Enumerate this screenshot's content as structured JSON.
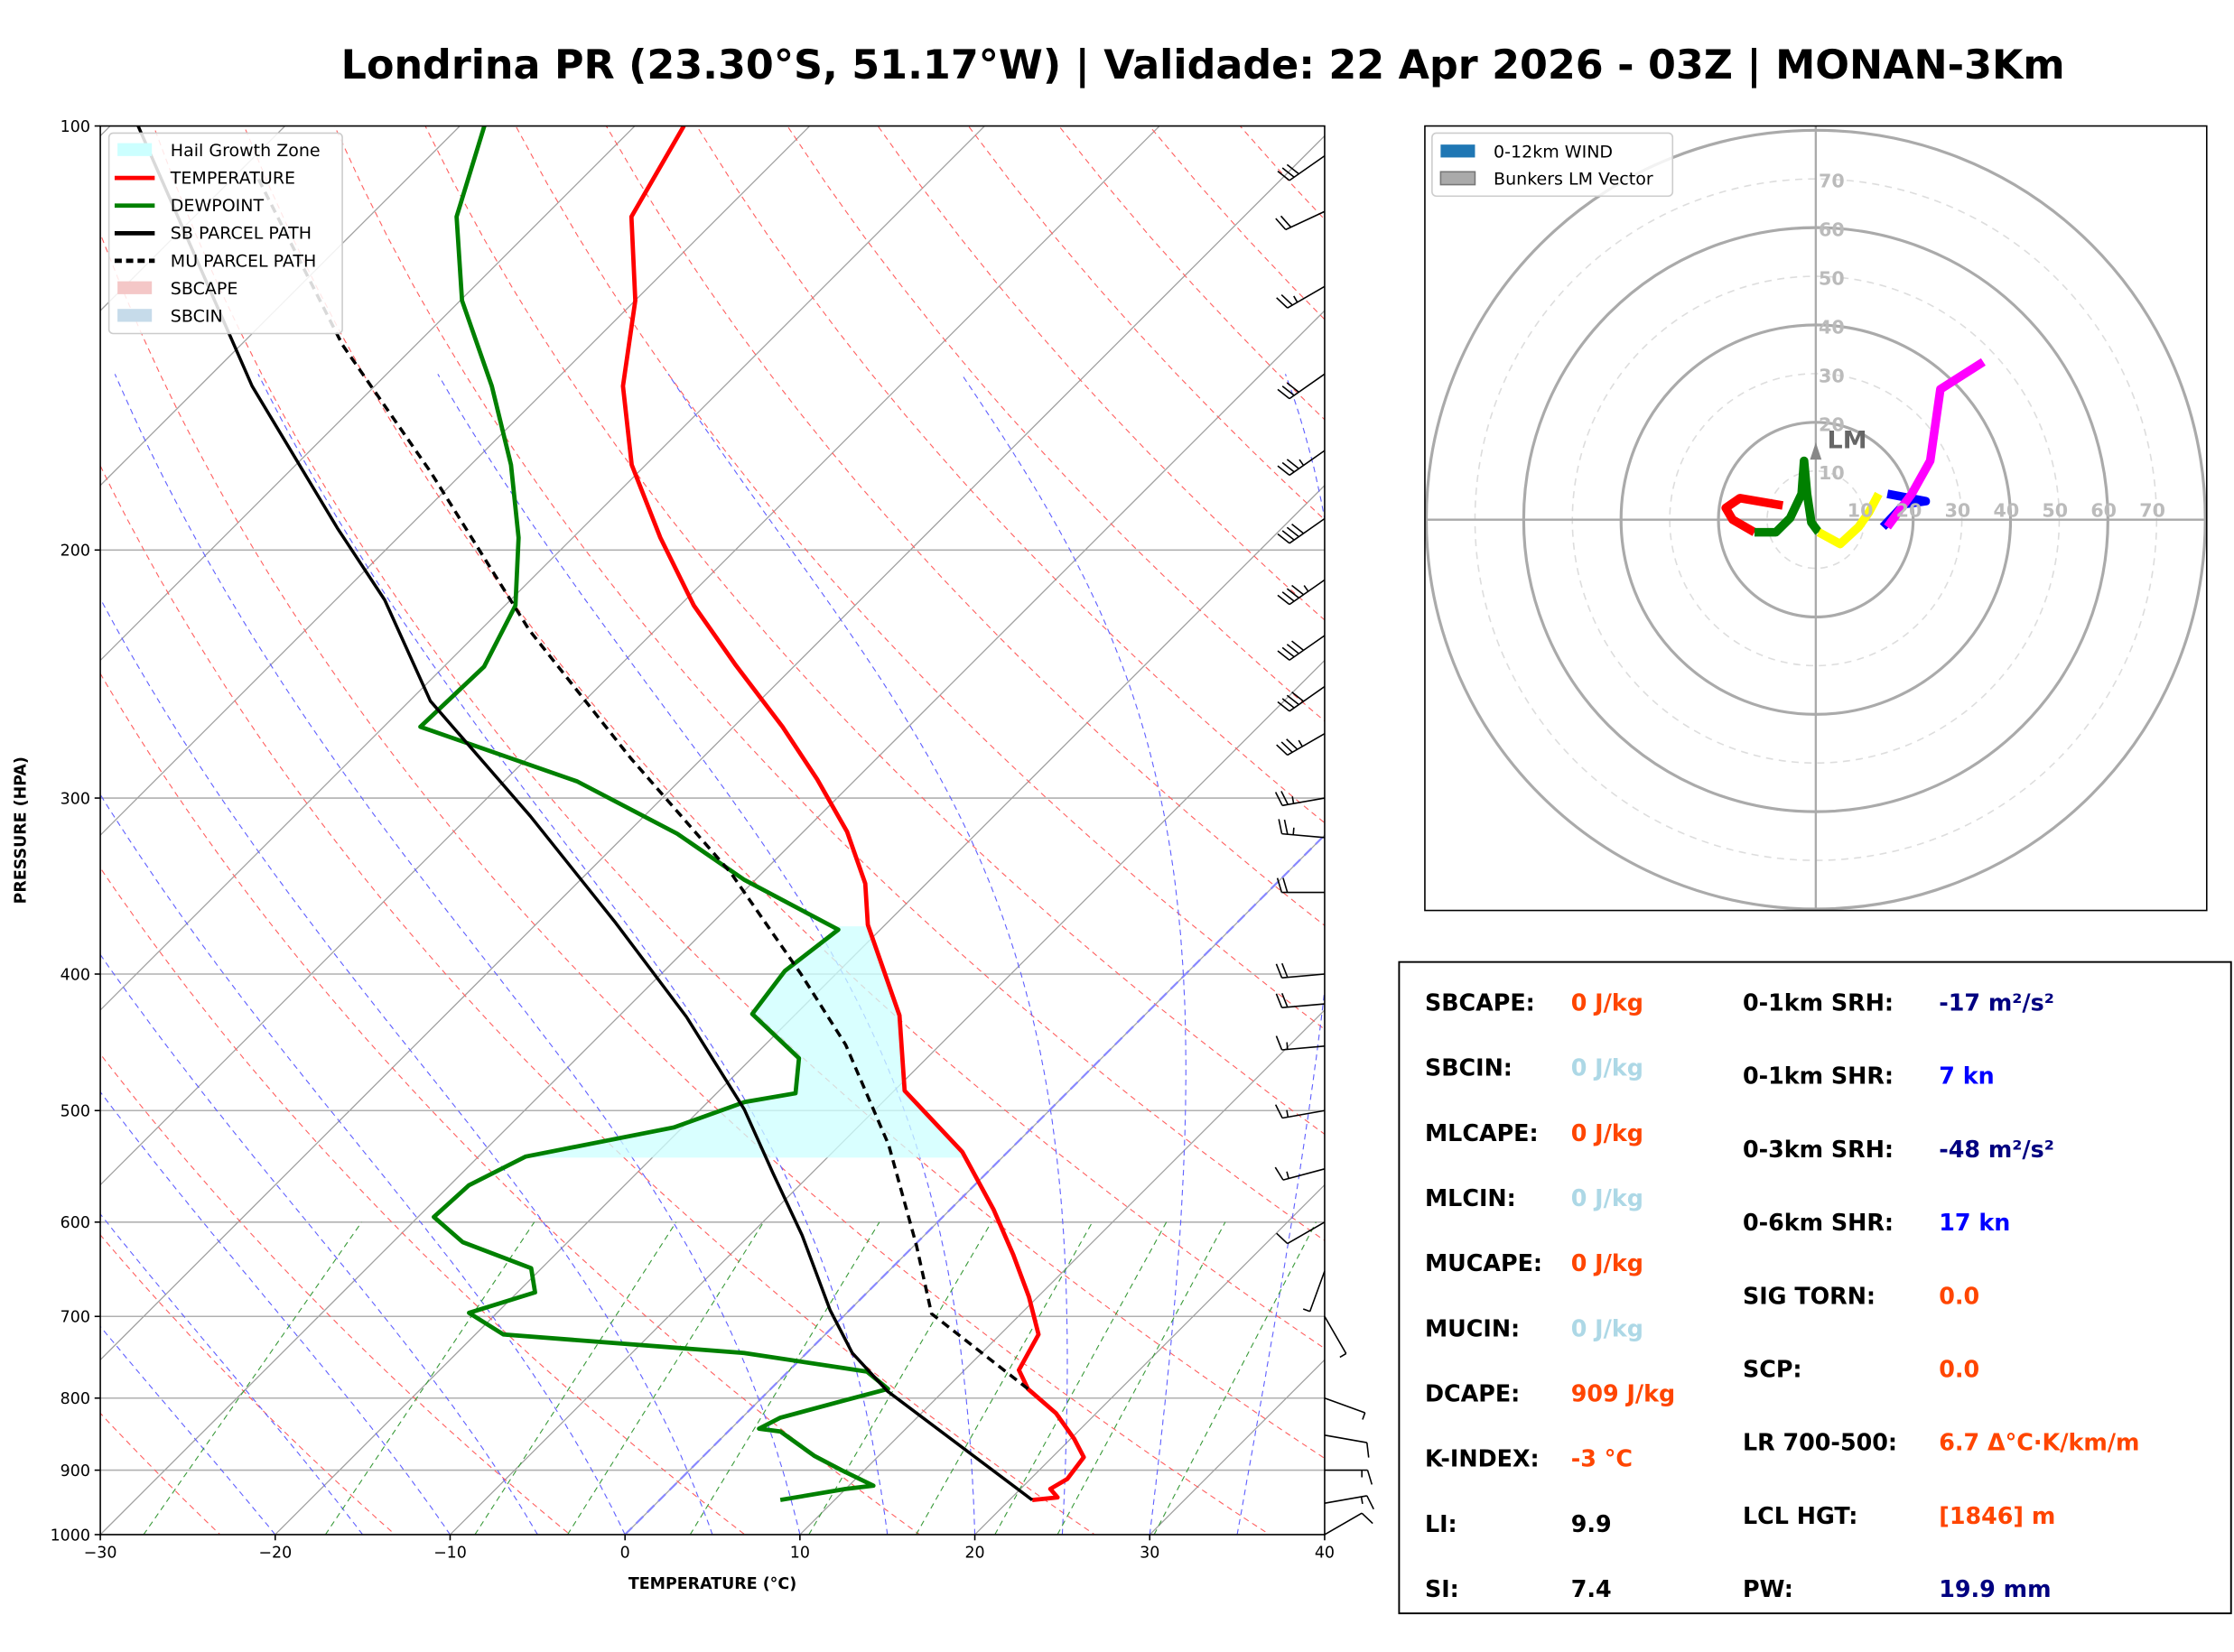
{
  "title": "Londrina PR (23.30°S, 51.17°W) | Validade: 22 Apr 2026 - 03Z | MONAN-3Km",
  "chart_data": [
    {
      "type": "line",
      "kind": "skew-T log-p",
      "xlabel": "TEMPERATURE (°C)",
      "ylabel": "PRESSURE (HPA)",
      "xlim": [
        -30,
        40
      ],
      "ylim": [
        1000,
        100
      ],
      "yscale": "log",
      "xticks": [
        "−30",
        "−20",
        "−10",
        "0",
        "10",
        "20",
        "30",
        "40"
      ],
      "xtick_values": [
        -30,
        -20,
        -10,
        0,
        10,
        20,
        30,
        40
      ],
      "yticks": [
        "100",
        "200",
        "300",
        "400",
        "500",
        "600",
        "700",
        "800",
        "900",
        "1000"
      ],
      "ytick_values": [
        100,
        200,
        300,
        400,
        500,
        600,
        700,
        800,
        900,
        1000
      ],
      "grid": true,
      "legend_position": "top-left",
      "legend": [
        {
          "label": "Hail Growth Zone",
          "color": "#ccffff",
          "style": "patch"
        },
        {
          "label": "TEMPERATURE",
          "color": "#ff0000",
          "style": "line"
        },
        {
          "label": "DEWPOINT",
          "color": "#008000",
          "style": "line"
        },
        {
          "label": "SB PARCEL PATH",
          "color": "#000000",
          "style": "line"
        },
        {
          "label": "MU PARCEL PATH",
          "color": "#000000",
          "style": "dashed"
        },
        {
          "label": "SBCAPE",
          "color": "#f4c7c7",
          "style": "patch"
        },
        {
          "label": "SBCIN",
          "color": "#c6dbea",
          "style": "patch"
        }
      ],
      "series": [
        {
          "name": "TEMPERATURE",
          "color": "#ff0000",
          "p": [
            945,
            941,
            928,
            913,
            881,
            855,
            820,
            788,
            764,
            721,
            678,
            633,
            588,
            535,
            484,
            428,
            369,
            345,
            317,
            291,
            267,
            241,
            219,
            196,
            174,
            153,
            133,
            116,
            100
          ],
          "t": [
            21.3,
            22.6,
            21.7,
            22.1,
            21.8,
            20.2,
            17.7,
            14.7,
            13.1,
            12.2,
            9.5,
            6.2,
            2.5,
            -2.6,
            -9.4,
            -14.0,
            -21.0,
            -23.5,
            -27.5,
            -32.2,
            -37.2,
            -43.5,
            -49.2,
            -55.0,
            -60.8,
            -65.8,
            -70.0,
            -75.0,
            -77.2
          ]
        },
        {
          "name": "DEWPOINT",
          "color": "#008000",
          "p": [
            945,
            928,
            923,
            900,
            879,
            845,
            841,
            826,
            803,
            788,
            766,
            743,
            721,
            696,
            673,
            647,
            620,
            595,
            565,
            539,
            514,
            493,
            486,
            459,
            427,
            398,
            372,
            343,
            318,
            292,
            267,
            242,
            219,
            196,
            174,
            153,
            133,
            116,
            100
          ],
          "t": [
            6.9,
            10.0,
            11.4,
            8.7,
            6.3,
            3.0,
            1.6,
            2.2,
            4.9,
            6.7,
            4.5,
            -3.6,
            -18.4,
            -21.6,
            -19.0,
            -20.6,
            -26.0,
            -29.1,
            -28.9,
            -27.3,
            -20.5,
            -17.9,
            -15.5,
            -17.3,
            -22.5,
            -23.1,
            -22.4,
            -30.6,
            -37.1,
            -45.8,
            -57.9,
            -57.7,
            -59.4,
            -63.1,
            -67.7,
            -73.3,
            -79.9,
            -85.0,
            -88.6
          ]
        },
        {
          "name": "SB PARCEL PATH",
          "color": "#000000",
          "p": [
            945,
            791,
            743,
            693,
            613,
            554,
            499,
            429,
            368,
            309,
            256,
            217,
            193,
            153,
            100
          ],
          "t": [
            21.3,
            6.8,
            2.6,
            -1.1,
            -7.0,
            -12.2,
            -17.5,
            -26.1,
            -35.5,
            -46.5,
            -58.8,
            -67.2,
            -74.0,
            -87.0,
            -108.4
          ]
        },
        {
          "name": "MU PARCEL PATH",
          "color": "#000000",
          "dashed": true,
          "p": [
            788,
            697,
            623,
            529,
            449,
            400,
            339,
            281,
            228,
            176,
            143,
            108
          ],
          "t": [
            14.7,
            4.9,
            0.1,
            -7.2,
            -15.4,
            -22.0,
            -31.8,
            -44.1,
            -57.2,
            -71.9,
            -84.2,
            -99.0
          ]
        }
      ],
      "hail_growth_zone_hpa": [
        540,
        370
      ],
      "wind_barbs": [
        {
          "p": 1000,
          "dir": 60,
          "spd": 10
        },
        {
          "p": 950,
          "dir": 80,
          "spd": 15
        },
        {
          "p": 900,
          "dir": 90,
          "spd": 15
        },
        {
          "p": 850,
          "dir": 100,
          "spd": 12
        },
        {
          "p": 800,
          "dir": 110,
          "spd": 8
        },
        {
          "p": 700,
          "dir": 150,
          "spd": 5
        },
        {
          "p": 650,
          "dir": 200,
          "spd": 8
        },
        {
          "p": 600,
          "dir": 240,
          "spd": 12
        },
        {
          "p": 550,
          "dir": 255,
          "spd": 15
        },
        {
          "p": 500,
          "dir": 260,
          "spd": 15
        },
        {
          "p": 450,
          "dir": 265,
          "spd": 15
        },
        {
          "p": 420,
          "dir": 265,
          "spd": 20
        },
        {
          "p": 400,
          "dir": 265,
          "spd": 20
        },
        {
          "p": 350,
          "dir": 270,
          "spd": 20
        },
        {
          "p": 320,
          "dir": 275,
          "spd": 25
        },
        {
          "p": 300,
          "dir": 260,
          "spd": 25
        },
        {
          "p": 270,
          "dir": 240,
          "spd": 35
        },
        {
          "p": 250,
          "dir": 235,
          "spd": 40
        },
        {
          "p": 230,
          "dir": 235,
          "spd": 40
        },
        {
          "p": 210,
          "dir": 235,
          "spd": 45
        },
        {
          "p": 190,
          "dir": 235,
          "spd": 40
        },
        {
          "p": 170,
          "dir": 235,
          "spd": 35
        },
        {
          "p": 150,
          "dir": 235,
          "spd": 30
        },
        {
          "p": 130,
          "dir": 240,
          "spd": 25
        },
        {
          "p": 115,
          "dir": 245,
          "spd": 20
        },
        {
          "p": 105,
          "dir": 235,
          "spd": 30
        }
      ]
    },
    {
      "type": "line",
      "kind": "hodograph",
      "units": "kn",
      "rings": [
        10,
        20,
        30,
        40,
        50,
        60,
        70,
        80
      ],
      "ring_labels": [
        "10",
        "20",
        "30",
        "40",
        "50",
        "60",
        "70"
      ],
      "legend_position": "top-left",
      "legend": [
        {
          "label": "0-12km WIND",
          "color": "#1f77b4"
        },
        {
          "label": "Bunkers LM Vector",
          "color": "#aaaaaa"
        }
      ],
      "series": [
        {
          "color": "#ff0000",
          "u": [
            -6.8,
            -15.6,
            -18.5,
            -17.1,
            -12.6
          ],
          "v": [
            2.9,
            4.4,
            2.4,
            0,
            -2.6
          ]
        },
        {
          "color": "#008000",
          "u": [
            -12.6,
            -8.2,
            -5.3,
            -2.9,
            -2.4,
            -1.8,
            -0.9,
            0.6
          ],
          "v": [
            -2.6,
            -2.6,
            0.3,
            5.3,
            12.1,
            5.3,
            -0.6,
            -2.6
          ]
        },
        {
          "color": "#ffff00",
          "u": [
            0.6,
            5.0,
            8.8,
            10.9,
            12.9
          ],
          "v": [
            -2.6,
            -5.0,
            -1.5,
            1.5,
            5.3
          ]
        },
        {
          "color": "#0000ff",
          "u": [
            14.7,
            22.6,
            18.2,
            13.8
          ],
          "v": [
            5.3,
            3.8,
            3.2,
            -1.5
          ]
        },
        {
          "color": "#ff00ff",
          "u": [
            14.7,
            19.7,
            23.5,
            25.6,
            34.4
          ],
          "v": [
            -1.5,
            5.3,
            12.1,
            26.8,
            32.4
          ]
        }
      ],
      "lm_vector": {
        "label": "LM",
        "u": 0,
        "v": 14.7
      }
    }
  ],
  "stats": {
    "left": [
      {
        "label": "SBCAPE:",
        "value": "0 J/kg",
        "color": "#ff4500"
      },
      {
        "label": "SBCIN:",
        "value": "0 J/kg",
        "color": "#add8e6"
      },
      {
        "label": "MLCAPE:",
        "value": "0 J/kg",
        "color": "#ff4500"
      },
      {
        "label": "MLCIN:",
        "value": "0 J/kg",
        "color": "#add8e6"
      },
      {
        "label": "MUCAPE:",
        "value": "0 J/kg",
        "color": "#ff4500"
      },
      {
        "label": "MUCIN:",
        "value": "0 J/kg",
        "color": "#add8e6"
      },
      {
        "label": "DCAPE:",
        "value": "909 J/kg",
        "color": "#ff4500"
      },
      {
        "label": "K-INDEX:",
        "value": "-3 °C",
        "color": "#ff4500"
      },
      {
        "label": "LI:",
        "value": "9.9",
        "color": "#000000"
      },
      {
        "label": "SI:",
        "value": "7.4",
        "color": "#000000"
      }
    ],
    "right": [
      {
        "label": "0-1km SRH:",
        "value": "-17 m²/s²",
        "color": "#000080"
      },
      {
        "label": "0-1km SHR:",
        "value": "7 kn",
        "color": "#0000ff"
      },
      {
        "label": "0-3km SRH:",
        "value": "-48 m²/s²",
        "color": "#000080"
      },
      {
        "label": "0-6km SHR:",
        "value": "17 kn",
        "color": "#0000ff"
      },
      {
        "label": "SIG TORN:",
        "value": "0.0",
        "color": "#ff4500"
      },
      {
        "label": "SCP:",
        "value": "0.0",
        "color": "#ff4500"
      },
      {
        "label": "LR 700-500:",
        "value": "6.7 Δ°C·K/km/m",
        "color": "#ff4500"
      },
      {
        "label": "LCL HGT:",
        "value": "[1846] m",
        "color": "#ff4500"
      },
      {
        "label": "PW:",
        "value": "19.9 mm",
        "color": "#000080"
      }
    ]
  }
}
